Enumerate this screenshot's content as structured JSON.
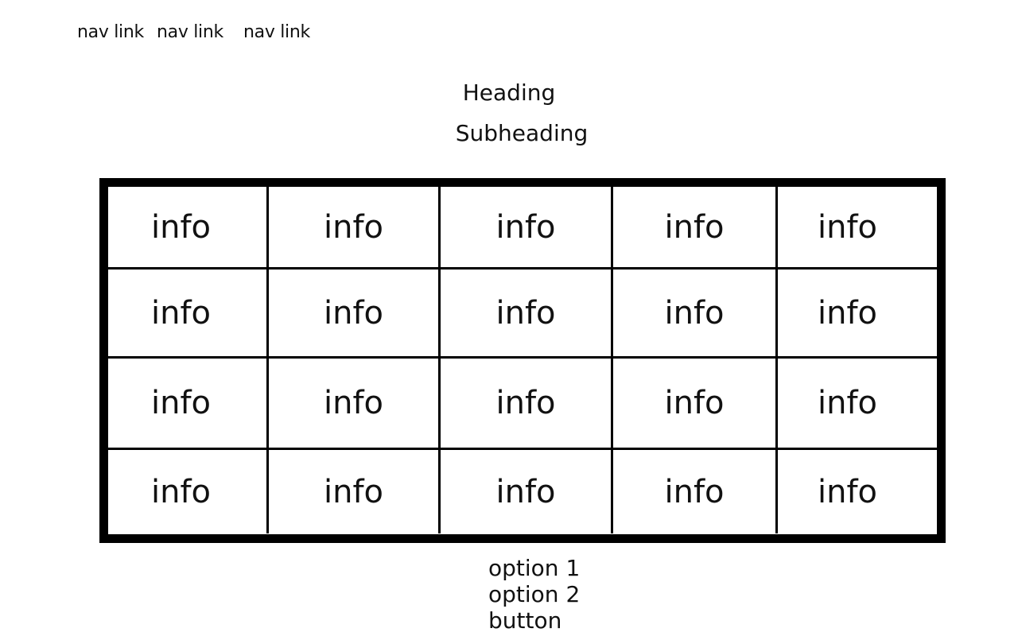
{
  "nav": {
    "links": [
      "nav link",
      "nav link",
      "nav link"
    ]
  },
  "header": {
    "heading": "Heading",
    "subheading": "Subheading"
  },
  "table": {
    "rows": [
      [
        "info",
        "info",
        "info",
        "info",
        "info"
      ],
      [
        "info",
        "info",
        "info",
        "info",
        "info"
      ],
      [
        "info",
        "info",
        "info",
        "info",
        "info"
      ],
      [
        "info",
        "info",
        "info",
        "info",
        "info"
      ]
    ]
  },
  "controls": {
    "option_1": "option 1",
    "option_2": "option 2",
    "button_label": "button"
  }
}
